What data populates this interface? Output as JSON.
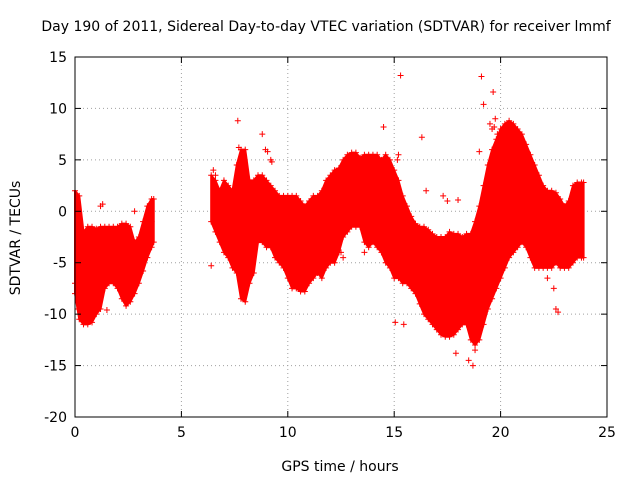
{
  "chart_data": {
    "type": "scatter",
    "title": "Day 190 of 2011, Sidereal Day-to-day VTEC variation (SDTVAR) for receiver lmmf",
    "xlabel": "GPS time / hours",
    "ylabel": "SDTVAR / TECUs",
    "xlim": [
      0,
      25
    ],
    "ylim": [
      -20,
      15
    ],
    "x_ticks": [
      0,
      5,
      10,
      15,
      20,
      25
    ],
    "y_ticks": [
      -20,
      -15,
      -10,
      -5,
      0,
      5,
      10,
      15
    ],
    "grid": true,
    "marker": "+",
    "color": "#ff0000",
    "envelope": {
      "description": "dense band of points: upper and lower bounds of the data per time segment",
      "segments": [
        {
          "x": [
            0.0,
            0.2,
            0.4,
            0.6,
            0.8,
            1.0,
            1.2,
            1.4,
            1.6,
            1.8,
            2.0,
            2.2,
            2.4,
            2.6,
            2.8,
            3.0,
            3.2,
            3.4,
            3.6,
            3.7
          ],
          "upper": [
            2.0,
            1.5,
            -2.0,
            -1.5,
            -1.5,
            -1.7,
            -1.5,
            -1.5,
            -1.5,
            -1.5,
            -1.5,
            -1.2,
            -1.2,
            -1.5,
            -3.0,
            -2.5,
            -1.0,
            0.5,
            1.2,
            1.2
          ],
          "lower": [
            -8.0,
            -10.5,
            -11.0,
            -11.0,
            -10.8,
            -10.0,
            -9.5,
            -7.5,
            -7.0,
            -7.0,
            -7.5,
            -8.5,
            -9.2,
            -8.8,
            -8.0,
            -7.0,
            -5.8,
            -4.5,
            -3.5,
            -3.0
          ]
        },
        {
          "x": [
            6.4,
            6.6,
            6.8,
            7.0,
            7.2,
            7.4,
            7.6,
            7.8,
            8.0,
            8.2,
            8.4,
            8.6,
            8.8,
            9.0,
            9.2,
            9.4,
            9.6,
            9.8,
            10.0,
            10.2,
            10.4,
            10.6,
            10.8,
            11.0,
            11.2,
            11.4,
            11.6,
            11.8,
            12.0,
            12.2,
            12.4,
            12.6,
            12.8,
            13.0,
            13.2,
            13.4,
            13.6,
            13.8,
            14.0,
            14.2,
            14.4,
            14.6,
            14.8,
            15.0,
            15.2,
            15.4,
            15.6,
            15.8,
            16.0,
            16.2,
            16.4,
            16.6,
            16.8,
            17.0,
            17.2,
            17.4,
            17.6,
            17.8,
            18.0,
            18.2,
            18.4,
            18.6,
            18.8,
            19.0,
            19.2,
            19.4,
            19.6,
            19.8,
            20.0,
            20.2,
            20.4,
            20.6,
            20.8,
            21.0,
            21.2,
            21.4,
            21.6,
            21.8,
            22.0,
            22.2,
            22.4,
            22.6,
            22.8,
            23.0,
            23.2,
            23.4,
            23.6,
            23.8,
            23.9
          ],
          "upper": [
            3.5,
            3.0,
            2.0,
            3.0,
            2.5,
            2.0,
            4.5,
            6.0,
            6.0,
            3.0,
            3.0,
            3.5,
            3.5,
            3.0,
            2.5,
            2.0,
            1.5,
            1.5,
            1.5,
            1.5,
            1.5,
            1.0,
            0.5,
            1.0,
            1.5,
            1.5,
            2.0,
            3.0,
            3.5,
            4.0,
            4.2,
            5.0,
            5.5,
            5.7,
            5.7,
            5.2,
            5.5,
            5.5,
            5.5,
            5.5,
            5.0,
            5.5,
            5.0,
            4.0,
            3.0,
            1.5,
            0.5,
            -0.5,
            -1.2,
            -1.5,
            -1.5,
            -1.8,
            -2.2,
            -2.5,
            -2.5,
            -2.5,
            -2.0,
            -2.2,
            -2.2,
            -2.5,
            -2.2,
            -2.2,
            -1.0,
            0.5,
            2.5,
            4.5,
            6.0,
            7.0,
            8.0,
            8.5,
            8.8,
            8.5,
            8.0,
            7.5,
            6.5,
            5.5,
            4.5,
            3.5,
            2.5,
            2.0,
            2.0,
            1.8,
            1.2,
            0.5,
            1.0,
            2.5,
            2.8,
            2.8,
            2.8
          ],
          "lower": [
            -1.0,
            -2.0,
            -3.0,
            -4.0,
            -4.5,
            -5.5,
            -6.0,
            -8.5,
            -8.8,
            -7.0,
            -6.0,
            -3.0,
            -3.0,
            -3.5,
            -3.5,
            -4.5,
            -5.0,
            -5.5,
            -6.5,
            -7.5,
            -7.5,
            -7.8,
            -7.8,
            -7.0,
            -6.5,
            -6.0,
            -6.5,
            -5.5,
            -5.0,
            -5.0,
            -4.0,
            -2.5,
            -2.0,
            -1.5,
            -1.5,
            -1.5,
            -3.0,
            -3.5,
            -3.0,
            -3.5,
            -4.0,
            -5.0,
            -5.5,
            -6.5,
            -6.5,
            -7.0,
            -7.0,
            -7.5,
            -8.0,
            -9.0,
            -10.0,
            -10.5,
            -11.0,
            -11.5,
            -12.0,
            -12.2,
            -12.2,
            -12.0,
            -11.5,
            -11.0,
            -11.0,
            -12.5,
            -13.0,
            -12.5,
            -11.0,
            -9.5,
            -8.5,
            -7.5,
            -6.5,
            -5.5,
            -4.5,
            -4.0,
            -3.5,
            -3.0,
            -3.5,
            -4.5,
            -5.5,
            -5.5,
            -5.5,
            -5.5,
            -5.5,
            -5.0,
            -5.5,
            -5.5,
            -5.5,
            -5.0,
            -4.5,
            -4.5,
            -4.5
          ]
        }
      ]
    },
    "outliers": {
      "x": [
        0.0,
        0.15,
        0.3,
        1.2,
        1.3,
        1.5,
        2.8,
        3.6,
        6.4,
        6.5,
        6.6,
        6.7,
        6.9,
        7.0,
        7.65,
        7.7,
        8.8,
        8.95,
        9.05,
        9.2,
        9.25,
        12.5,
        12.6,
        13.6,
        14.5,
        14.8,
        15.0,
        15.05,
        15.15,
        15.2,
        15.3,
        15.35,
        15.45,
        16.3,
        16.5,
        17.3,
        17.5,
        17.9,
        18.0,
        18.5,
        18.7,
        18.8,
        19.0,
        19.1,
        19.2,
        19.5,
        19.6,
        19.65,
        19.7,
        19.75,
        19.85,
        20.0,
        22.2,
        22.5,
        22.6,
        22.7
      ],
      "y": [
        -7.0,
        -9.5,
        -10.5,
        0.5,
        0.7,
        -9.6,
        0.0,
        -1.0,
        -5.3,
        4.0,
        3.5,
        -2.0,
        -3.0,
        2.0,
        8.8,
        6.2,
        7.5,
        6.0,
        5.8,
        5.0,
        4.8,
        -4.0,
        -4.5,
        -4.0,
        8.2,
        -5.0,
        2.0,
        -10.8,
        5.0,
        5.5,
        13.2,
        -4.5,
        -11.0,
        7.2,
        2.0,
        1.5,
        1.0,
        -13.8,
        1.1,
        -14.5,
        -15.0,
        -13.5,
        5.8,
        13.1,
        10.4,
        8.5,
        8.0,
        11.6,
        8.2,
        9.0,
        7.5,
        7.0,
        -6.5,
        -7.5,
        -9.5,
        -9.8
      ]
    }
  }
}
